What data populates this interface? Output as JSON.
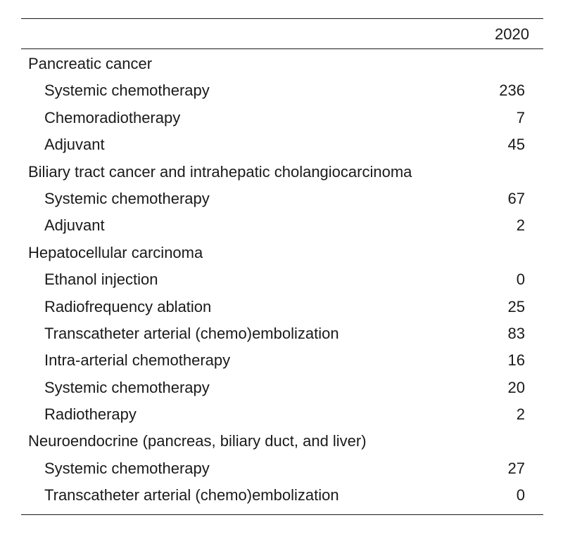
{
  "table": {
    "year_header": "2020",
    "rows": [
      {
        "label": "Pancreatic cancer",
        "value": ""
      },
      {
        "label": "Systemic chemotherapy",
        "value": "236"
      },
      {
        "label": "Chemoradiotherapy",
        "value": "7"
      },
      {
        "label": "Adjuvant",
        "value": "45"
      },
      {
        "label": "Biliary tract cancer and intrahepatic cholangiocarcinoma",
        "value": ""
      },
      {
        "label": "Systemic chemotherapy",
        "value": "67"
      },
      {
        "label": "Adjuvant",
        "value": "2"
      },
      {
        "label": "Hepatocellular carcinoma",
        "value": ""
      },
      {
        "label": "Ethanol injection",
        "value": "0"
      },
      {
        "label": "Radiofrequency ablation",
        "value": "25"
      },
      {
        "label": "Transcatheter arterial (chemo)embolization",
        "value": "83"
      },
      {
        "label": "Intra-arterial chemotherapy",
        "value": "16"
      },
      {
        "label": "Systemic chemotherapy",
        "value": "20"
      },
      {
        "label": "Radiotherapy",
        "value": "2"
      },
      {
        "label": "Neuroendocrine (pancreas, biliary duct, and liver)",
        "value": ""
      },
      {
        "label": "Systemic chemotherapy",
        "value": "27"
      },
      {
        "label": "Transcatheter arterial (chemo)embolization",
        "value": "0"
      }
    ]
  }
}
